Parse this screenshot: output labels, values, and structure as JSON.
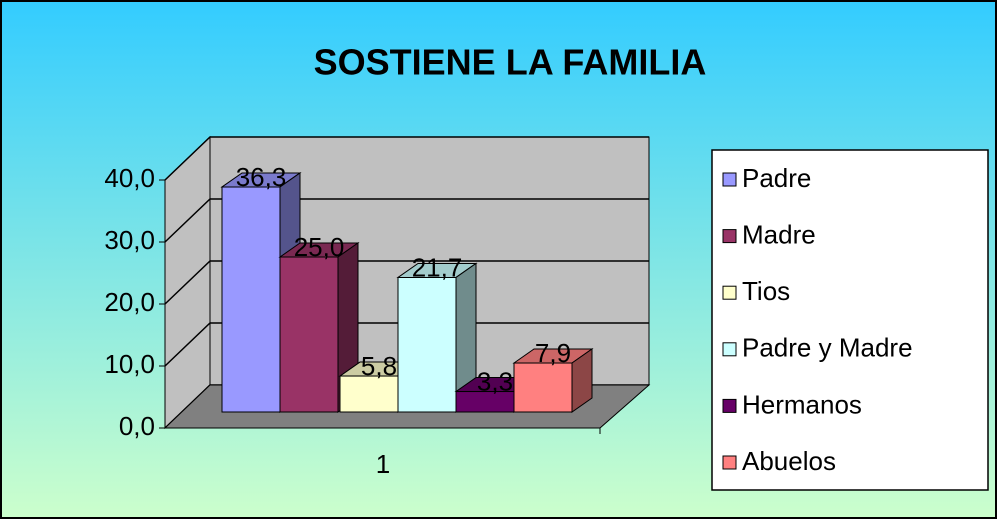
{
  "chart_data": {
    "type": "bar3d",
    "title": "SOSTIENE LA FAMILIA",
    "categories": [
      "1"
    ],
    "series": [
      {
        "name": "Padre",
        "color": "#9999ff",
        "values": [
          36.3
        ],
        "value_labels": [
          "36,3"
        ]
      },
      {
        "name": "Madre",
        "color": "#993366",
        "values": [
          25.0
        ],
        "value_labels": [
          "25,0"
        ]
      },
      {
        "name": "Tios",
        "color": "#ffffcc",
        "values": [
          5.8
        ],
        "value_labels": [
          "5,8"
        ]
      },
      {
        "name": "Padre y Madre",
        "color": "#ccffff",
        "values": [
          21.7
        ],
        "value_labels": [
          "21,7"
        ]
      },
      {
        "name": "Hermanos",
        "color": "#660066",
        "values": [
          3.3
        ],
        "value_labels": [
          "3,3"
        ]
      },
      {
        "name": "Abuelos",
        "color": "#ff8080",
        "values": [
          7.9
        ],
        "value_labels": [
          "7,9"
        ]
      }
    ],
    "ylim": [
      0,
      40
    ],
    "yticks": [
      {
        "value": 0,
        "label": "0,0"
      },
      {
        "value": 10,
        "label": "10,0"
      },
      {
        "value": 20,
        "label": "20,0"
      },
      {
        "value": 30,
        "label": "30,0"
      },
      {
        "value": 40,
        "label": "40,0"
      }
    ],
    "grid": true,
    "legend": "right"
  }
}
